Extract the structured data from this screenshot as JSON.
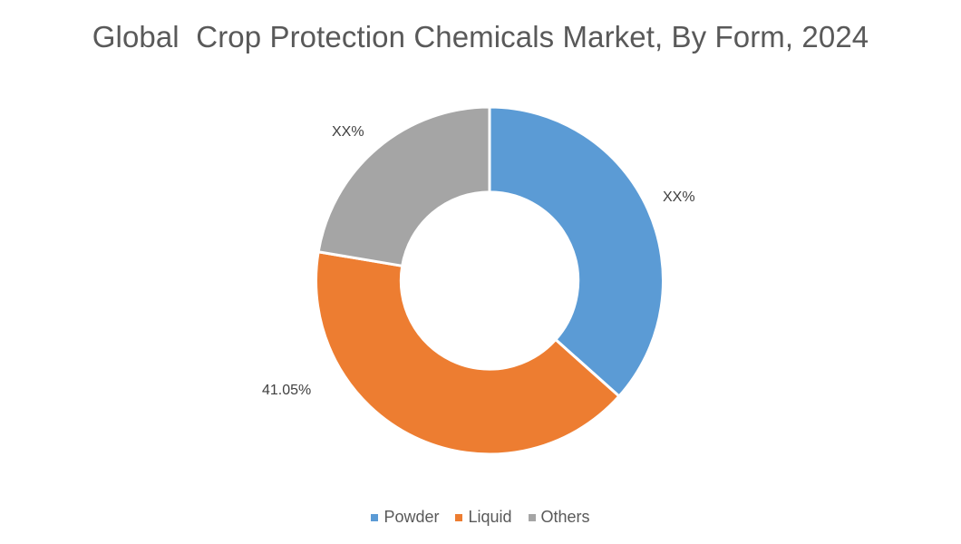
{
  "chart_data": {
    "type": "pie",
    "subtype": "donut",
    "title": "Global  Crop Protection Chemicals Market, By Form, 2024",
    "categories": [
      "Powder",
      "Liquid",
      "Others"
    ],
    "values": [
      36.6,
      41.05,
      22.35
    ],
    "value_note": "Only Liquid is labeled (41.05%); Powder and Others are shown as XX% and estimated from slice angles",
    "data_labels": [
      "XX%",
      "41.05%",
      "XX%"
    ],
    "colors": [
      "#5B9BD5",
      "#ED7D31",
      "#A5A5A5"
    ],
    "legend": {
      "position": "bottom",
      "entries": [
        "Powder",
        "Liquid",
        "Others"
      ]
    },
    "start_angle_deg": 0,
    "direction": "clockwise",
    "hole_ratio": 0.51
  },
  "labels": {
    "powder": "XX%",
    "liquid": "41.05%",
    "others": "XX%"
  }
}
